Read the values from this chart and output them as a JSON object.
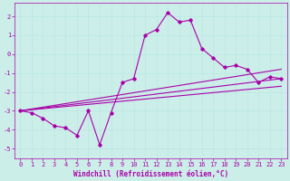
{
  "xlabel": "Windchill (Refroidissement éolien,°C)",
  "background_color": "#cceee8",
  "line_color": "#aa00aa",
  "xlim": [
    -0.5,
    23.5
  ],
  "ylim": [
    -5.5,
    2.7
  ],
  "yticks": [
    -5,
    -4,
    -3,
    -2,
    -1,
    0,
    1,
    2
  ],
  "xticks": [
    0,
    1,
    2,
    3,
    4,
    5,
    6,
    7,
    8,
    9,
    10,
    11,
    12,
    13,
    14,
    15,
    16,
    17,
    18,
    19,
    20,
    21,
    22,
    23
  ],
  "main_x": [
    0,
    1,
    2,
    3,
    4,
    5,
    6,
    7,
    8,
    9,
    10,
    11,
    12,
    13,
    14,
    15,
    16,
    17,
    18,
    19,
    20,
    21,
    22,
    23
  ],
  "main_y": [
    -3.0,
    -3.1,
    -3.4,
    -3.8,
    -3.9,
    -4.3,
    -3.0,
    -4.8,
    -3.1,
    -1.5,
    -1.3,
    1.0,
    1.3,
    2.2,
    1.7,
    1.8,
    0.3,
    -0.2,
    -0.7,
    -0.6,
    -0.8,
    -1.5,
    -1.2,
    -1.3
  ],
  "ref1_x0": 0,
  "ref1_y0": -3.0,
  "ref1_x1": 23,
  "ref1_y1": -0.8,
  "ref2_x0": 0,
  "ref2_y0": -3.0,
  "ref2_x1": 23,
  "ref2_y1": -1.3,
  "ref3_x0": 0,
  "ref3_y0": -3.0,
  "ref3_x1": 23,
  "ref3_y1": -1.7,
  "font_size_label": 5.5,
  "font_size_tick": 5.0,
  "grid_color": "#b8e8e4",
  "marker": "D",
  "marker_size": 1.8,
  "line_width": 0.8
}
